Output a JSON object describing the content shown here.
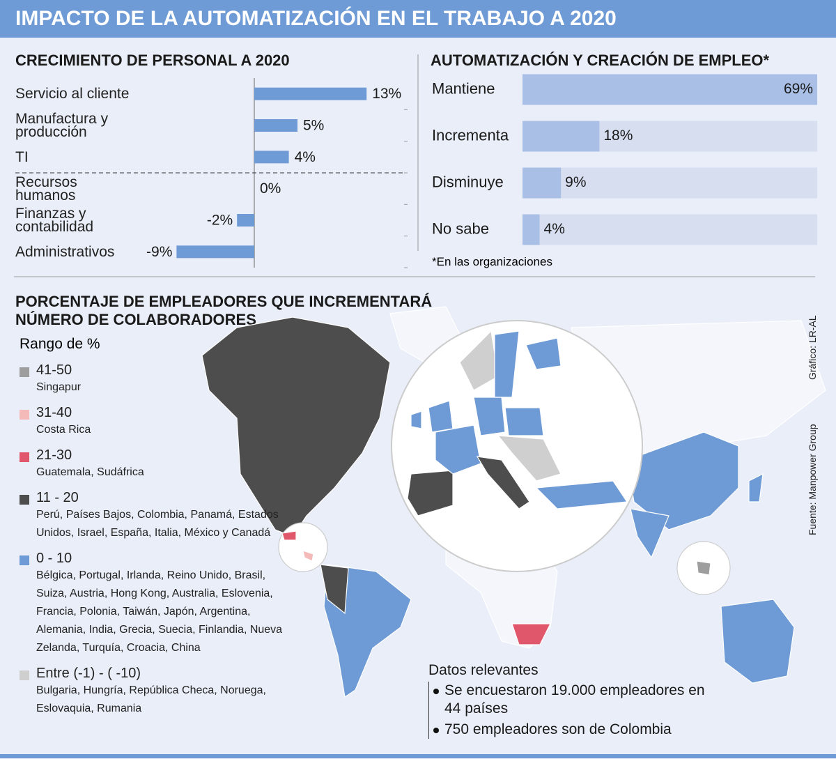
{
  "title": "IMPACTO DE LA AUTOMATIZACIÓN EN EL TRABAJO A 2020",
  "chart_data": [
    {
      "type": "hbar",
      "title": "CRECIMIENTO DE PERSONAL A 2020",
      "categories": [
        "Servicio al cliente",
        "Manufactura y producción",
        "TI",
        "Recursos humanos",
        "Finanzas y contabilidad",
        "Administrativos"
      ],
      "values": [
        13,
        5,
        4,
        0,
        -2,
        -9
      ],
      "value_labels": [
        "13%",
        "5%",
        "4%",
        "0%",
        "-2%",
        "-9%"
      ],
      "color": "#6e9bd6",
      "xlim": [
        -10,
        15
      ]
    },
    {
      "type": "track-bar",
      "title": "AUTOMATIZACIÓN Y CREACIÓN DE EMPLEO*",
      "categories": [
        "Mantiene",
        "Incrementa",
        "Disminuye",
        "No sabe"
      ],
      "values": [
        69,
        18,
        9,
        4
      ],
      "value_labels": [
        "69%",
        "18%",
        "9%",
        "4%"
      ],
      "color": "#a9bfe6",
      "track_color": "#d6def0",
      "xlim": [
        0,
        69
      ],
      "note": "*En las organizaciones"
    }
  ],
  "map": {
    "title": "PORCENTAJE DE EMPLEADORES QUE INCREMENTARÁ NÚMERO DE COLABORADORES",
    "legend_title": "Rango de %",
    "legend": [
      {
        "range": "41-50",
        "countries": "Singapur",
        "color": "#9e9e9e"
      },
      {
        "range": "31-40",
        "countries": "Costa Rica",
        "color": "#f4b9b9"
      },
      {
        "range": "21-30",
        "countries": "Guatemala, Sudáfrica",
        "color": "#e0566b"
      },
      {
        "range": "11 - 20",
        "countries": "Perú, Países Bajos, Colombia, Panamá, Estados Unidos, Israel, España, Italia, México y Canadá",
        "color": "#4d4d4d"
      },
      {
        "range": "0 - 10",
        "countries": "Bélgica, Portugal, Irlanda, Reino Unido, Brasil, Suiza, Austria, Hong Kong, Australia, Eslovenia, Francia, Polonia, Taiwán, Japón, Argentina, Alemania, India, Grecia, Suecia, Finlandia, Nueva Zelanda, Turquía, Croacia, China",
        "color": "#6e9bd6"
      },
      {
        "range": "Entre (-1) - ( -10)",
        "countries": "Bulgaria, Hungría, República Checa, Noruega, Eslovaquia, Rumania",
        "color": "#cfcfcf"
      }
    ]
  },
  "facts": {
    "title": "Datos relevantes",
    "items": [
      "Se encuestaron 19.000 empleadores en 44 países",
      "750 empleadores son de Colombia"
    ]
  },
  "credits": {
    "graphic": "Gráfico: LR-AL",
    "source": "Fuente: Manpower Group"
  }
}
